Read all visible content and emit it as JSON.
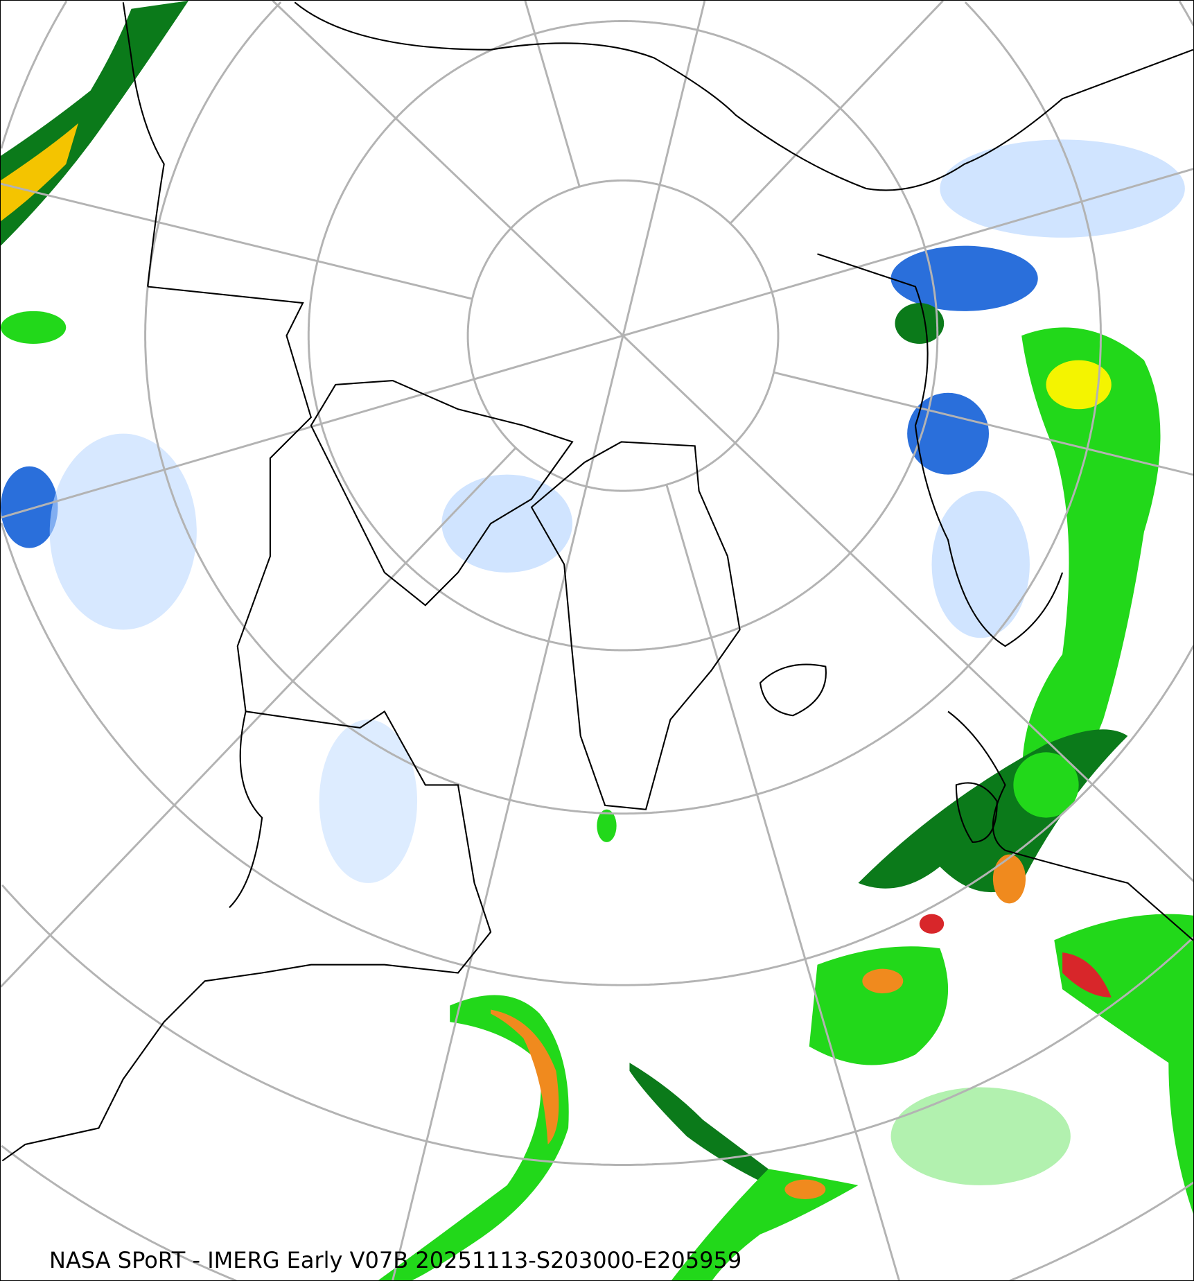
{
  "caption": "NASA SPoRT - IMERG Early V07B 20251113-S203000-E205959",
  "projection": "north polar stereographic",
  "colors": {
    "grid": "#b3b3b3",
    "coastline": "#000000",
    "precip_light_blue": "#bcd9ff",
    "precip_blue": "#2a6fdb",
    "precip_dark_green": "#0b7a1a",
    "precip_green": "#22d81a",
    "precip_yellow": "#f4f400",
    "precip_orange": "#f08a1e",
    "precip_red": "#d8262a",
    "precip_magenta": "#ff66cc"
  }
}
